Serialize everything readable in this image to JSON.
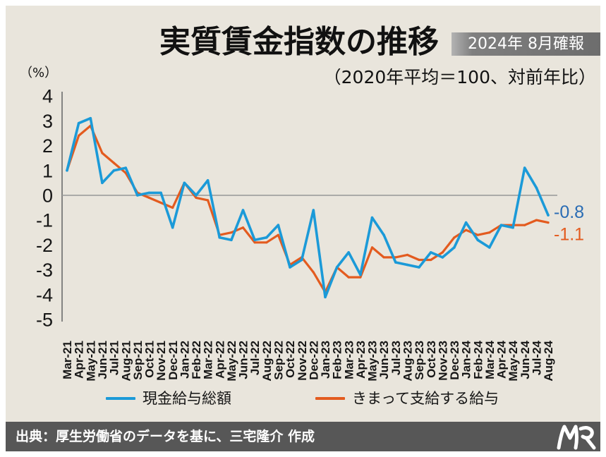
{
  "header": {
    "badge": "2024年 8月確報"
  },
  "chart_data": {
    "type": "line",
    "title": "実質賃金指数の推移",
    "subtitle": "（2020年平均＝100、対前年比）",
    "ylabel": "（%）",
    "ylim": [
      -5,
      4
    ],
    "yticks": [
      4,
      3,
      2,
      1,
      0,
      -1,
      -2,
      -3,
      -4,
      -5
    ],
    "grid": false,
    "zero_line": true,
    "legend": "bottom",
    "categories": [
      "Mar-21",
      "Apr-21",
      "May-21",
      "Jun-21",
      "Jul-21",
      "Aug-21",
      "Sep-21",
      "Oct-21",
      "Nov-21",
      "Dec-21",
      "Jan-22",
      "Feb-22",
      "Mar-22",
      "Apr-22",
      "May-22",
      "Jun-22",
      "Jul-22",
      "Aug-22",
      "Sep-22",
      "Oct-22",
      "Nov-22",
      "Dec-22",
      "Jan-23",
      "Feb-23",
      "Mar-23",
      "Apr-23",
      "May-23",
      "Jun-23",
      "Jul-23",
      "Aug-23",
      "Sep-23",
      "Oct-23",
      "Nov-23",
      "Dec-23",
      "Jan-24",
      "Feb-24",
      "Mar-24",
      "Apr-24",
      "May-24",
      "Jun-24",
      "Jul-24",
      "Aug-24"
    ],
    "series": [
      {
        "name": "現金給与総額",
        "color": "#1b9ad8",
        "label_color": "#2a6cb4",
        "end_label": "-0.8",
        "values": [
          1.0,
          2.9,
          3.1,
          0.5,
          1.0,
          1.1,
          0.0,
          0.1,
          0.1,
          -1.3,
          0.5,
          0.0,
          0.6,
          -1.7,
          -1.8,
          -0.6,
          -1.8,
          -1.7,
          -1.2,
          -2.9,
          -2.6,
          -0.6,
          -4.1,
          -2.9,
          -2.3,
          -3.2,
          -0.9,
          -1.6,
          -2.7,
          -2.8,
          -2.9,
          -2.3,
          -2.5,
          -2.1,
          -1.1,
          -1.8,
          -2.1,
          -1.2,
          -1.3,
          1.1,
          0.3,
          -0.8
        ]
      },
      {
        "name": "きまって支給する給与",
        "color": "#e35b1f",
        "label_color": "#e35b1f",
        "end_label": "-1.1",
        "values": [
          1.0,
          2.4,
          2.8,
          1.7,
          1.3,
          0.9,
          0.1,
          -0.1,
          -0.3,
          -0.5,
          0.5,
          -0.1,
          -0.2,
          -1.6,
          -1.5,
          -1.3,
          -1.9,
          -1.9,
          -1.6,
          -2.8,
          -2.5,
          -3.1,
          -3.9,
          -2.9,
          -3.3,
          -3.3,
          -2.1,
          -2.5,
          -2.5,
          -2.4,
          -2.6,
          -2.6,
          -2.3,
          -1.7,
          -1.4,
          -1.6,
          -1.5,
          -1.2,
          -1.2,
          -1.2,
          -1.0,
          -1.1
        ]
      }
    ]
  },
  "footer": {
    "source": "出典：厚生労働省のデータを基に、三宅隆介 作成",
    "logo": "logo-emblem-icon"
  },
  "colors": {
    "panel_background": "#e9e5dc",
    "footer_background": "#575757"
  }
}
